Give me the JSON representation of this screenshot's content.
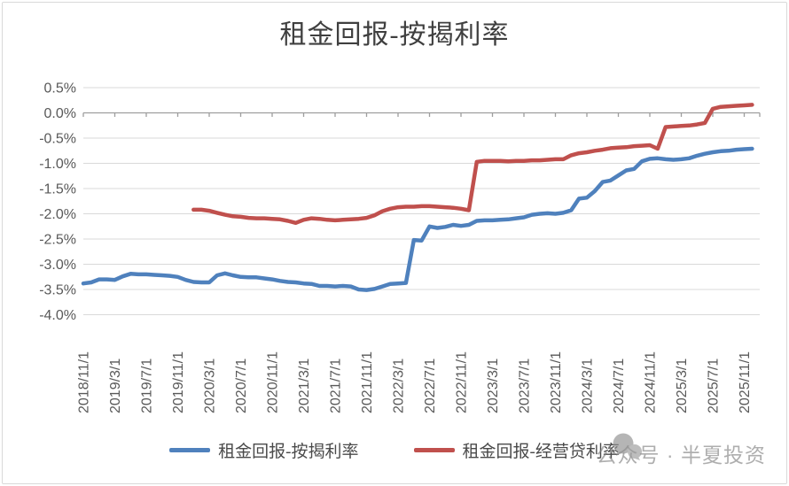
{
  "title": "租金回报-按揭利率",
  "legend": {
    "items": [
      {
        "label": "租金回报-按揭利率",
        "color": "#4F81BD"
      },
      {
        "label": "租金回报-经营贷利率",
        "color": "#C0504D"
      }
    ]
  },
  "watermark": {
    "icon": "wechat-public-account-icon",
    "text": "公众号 · 半夏投资"
  },
  "colors": {
    "grid": "#d9d9d9",
    "axis": "#9e9e9e",
    "tick_label": "#595959",
    "title_text": "#3f3f3f",
    "blue_series": "#4F81BD",
    "red_series": "#C0504D",
    "watermark": "#8f8f8f",
    "border": "#d9d9d9"
  },
  "chart_data": {
    "type": "line",
    "title": "租金回报-按揭利率",
    "x_unit": "month",
    "x_start": "2018/11/1",
    "x_end": "2025/12/1",
    "x_points_count": 86,
    "x_tick_labels": [
      "2018/11/1",
      "2019/3/1",
      "2019/7/1",
      "2019/11/1",
      "2020/3/1",
      "2020/7/1",
      "2020/11/1",
      "2021/3/1",
      "2021/7/1",
      "2021/11/1",
      "2022/3/1",
      "2022/7/1",
      "2022/11/1",
      "2023/3/1",
      "2023/7/1",
      "2023/11/1",
      "2024/3/1",
      "2024/7/1",
      "2024/11/1",
      "2025/3/1",
      "2025/7/1",
      "2025/11/1"
    ],
    "x_tick_month_indices": [
      0,
      4,
      8,
      12,
      16,
      20,
      24,
      28,
      32,
      36,
      40,
      44,
      48,
      52,
      56,
      60,
      64,
      68,
      72,
      76,
      80,
      84
    ],
    "y_tick_labels": [
      "0.5%",
      "0.0%",
      "-0.5%",
      "-1.0%",
      "-1.5%",
      "-2.0%",
      "-2.5%",
      "-3.0%",
      "-3.5%",
      "-4.0%"
    ],
    "ylim": [
      -4.0,
      0.5
    ],
    "grid": "horizontal",
    "legend_position": "bottom",
    "series": [
      {
        "name": "租金回报-按揭利率",
        "color": "#4F81BD",
        "values": [
          -3.38,
          -3.36,
          -3.3,
          -3.3,
          -3.31,
          -3.24,
          -3.19,
          -3.2,
          -3.2,
          -3.21,
          -3.22,
          -3.23,
          -3.25,
          -3.31,
          -3.35,
          -3.36,
          -3.36,
          -3.22,
          -3.18,
          -3.22,
          -3.25,
          -3.26,
          -3.26,
          -3.28,
          -3.3,
          -3.33,
          -3.35,
          -3.36,
          -3.38,
          -3.39,
          -3.43,
          -3.43,
          -3.44,
          -3.43,
          -3.44,
          -3.5,
          -3.51,
          -3.49,
          -3.44,
          -3.39,
          -3.38,
          -3.37,
          -2.52,
          -2.53,
          -2.25,
          -2.28,
          -2.26,
          -2.22,
          -2.24,
          -2.22,
          -2.14,
          -2.13,
          -2.13,
          -2.12,
          -2.11,
          -2.09,
          -2.07,
          -2.02,
          -2.0,
          -1.99,
          -2.0,
          -1.98,
          -1.93,
          -1.7,
          -1.68,
          -1.55,
          -1.37,
          -1.34,
          -1.24,
          -1.14,
          -1.11,
          -0.96,
          -0.91,
          -0.9,
          -0.92,
          -0.93,
          -0.92,
          -0.9,
          -0.85,
          -0.81,
          -0.78,
          -0.76,
          -0.75,
          -0.73,
          -0.72,
          -0.71
        ]
      },
      {
        "name": "租金回报-经营贷利率",
        "color": "#C0504D",
        "values": [
          null,
          null,
          null,
          null,
          null,
          null,
          null,
          null,
          null,
          null,
          null,
          null,
          null,
          null,
          -1.92,
          -1.92,
          -1.94,
          -1.98,
          -2.02,
          -2.05,
          -2.06,
          -2.08,
          -2.09,
          -2.09,
          -2.1,
          -2.11,
          -2.14,
          -2.18,
          -2.12,
          -2.09,
          -2.1,
          -2.12,
          -2.13,
          -2.12,
          -2.11,
          -2.1,
          -2.08,
          -2.03,
          -1.95,
          -1.9,
          -1.87,
          -1.86,
          -1.86,
          -1.85,
          -1.85,
          -1.86,
          -1.87,
          -1.88,
          -1.9,
          -1.93,
          -0.97,
          -0.95,
          -0.95,
          -0.95,
          -0.96,
          -0.95,
          -0.95,
          -0.94,
          -0.94,
          -0.93,
          -0.92,
          -0.92,
          -0.84,
          -0.8,
          -0.78,
          -0.75,
          -0.73,
          -0.7,
          -0.69,
          -0.68,
          -0.66,
          -0.65,
          -0.64,
          -0.71,
          -0.28,
          -0.27,
          -0.26,
          -0.25,
          -0.23,
          -0.2,
          0.08,
          0.12,
          0.13,
          0.14,
          0.15,
          0.16
        ]
      }
    ]
  }
}
